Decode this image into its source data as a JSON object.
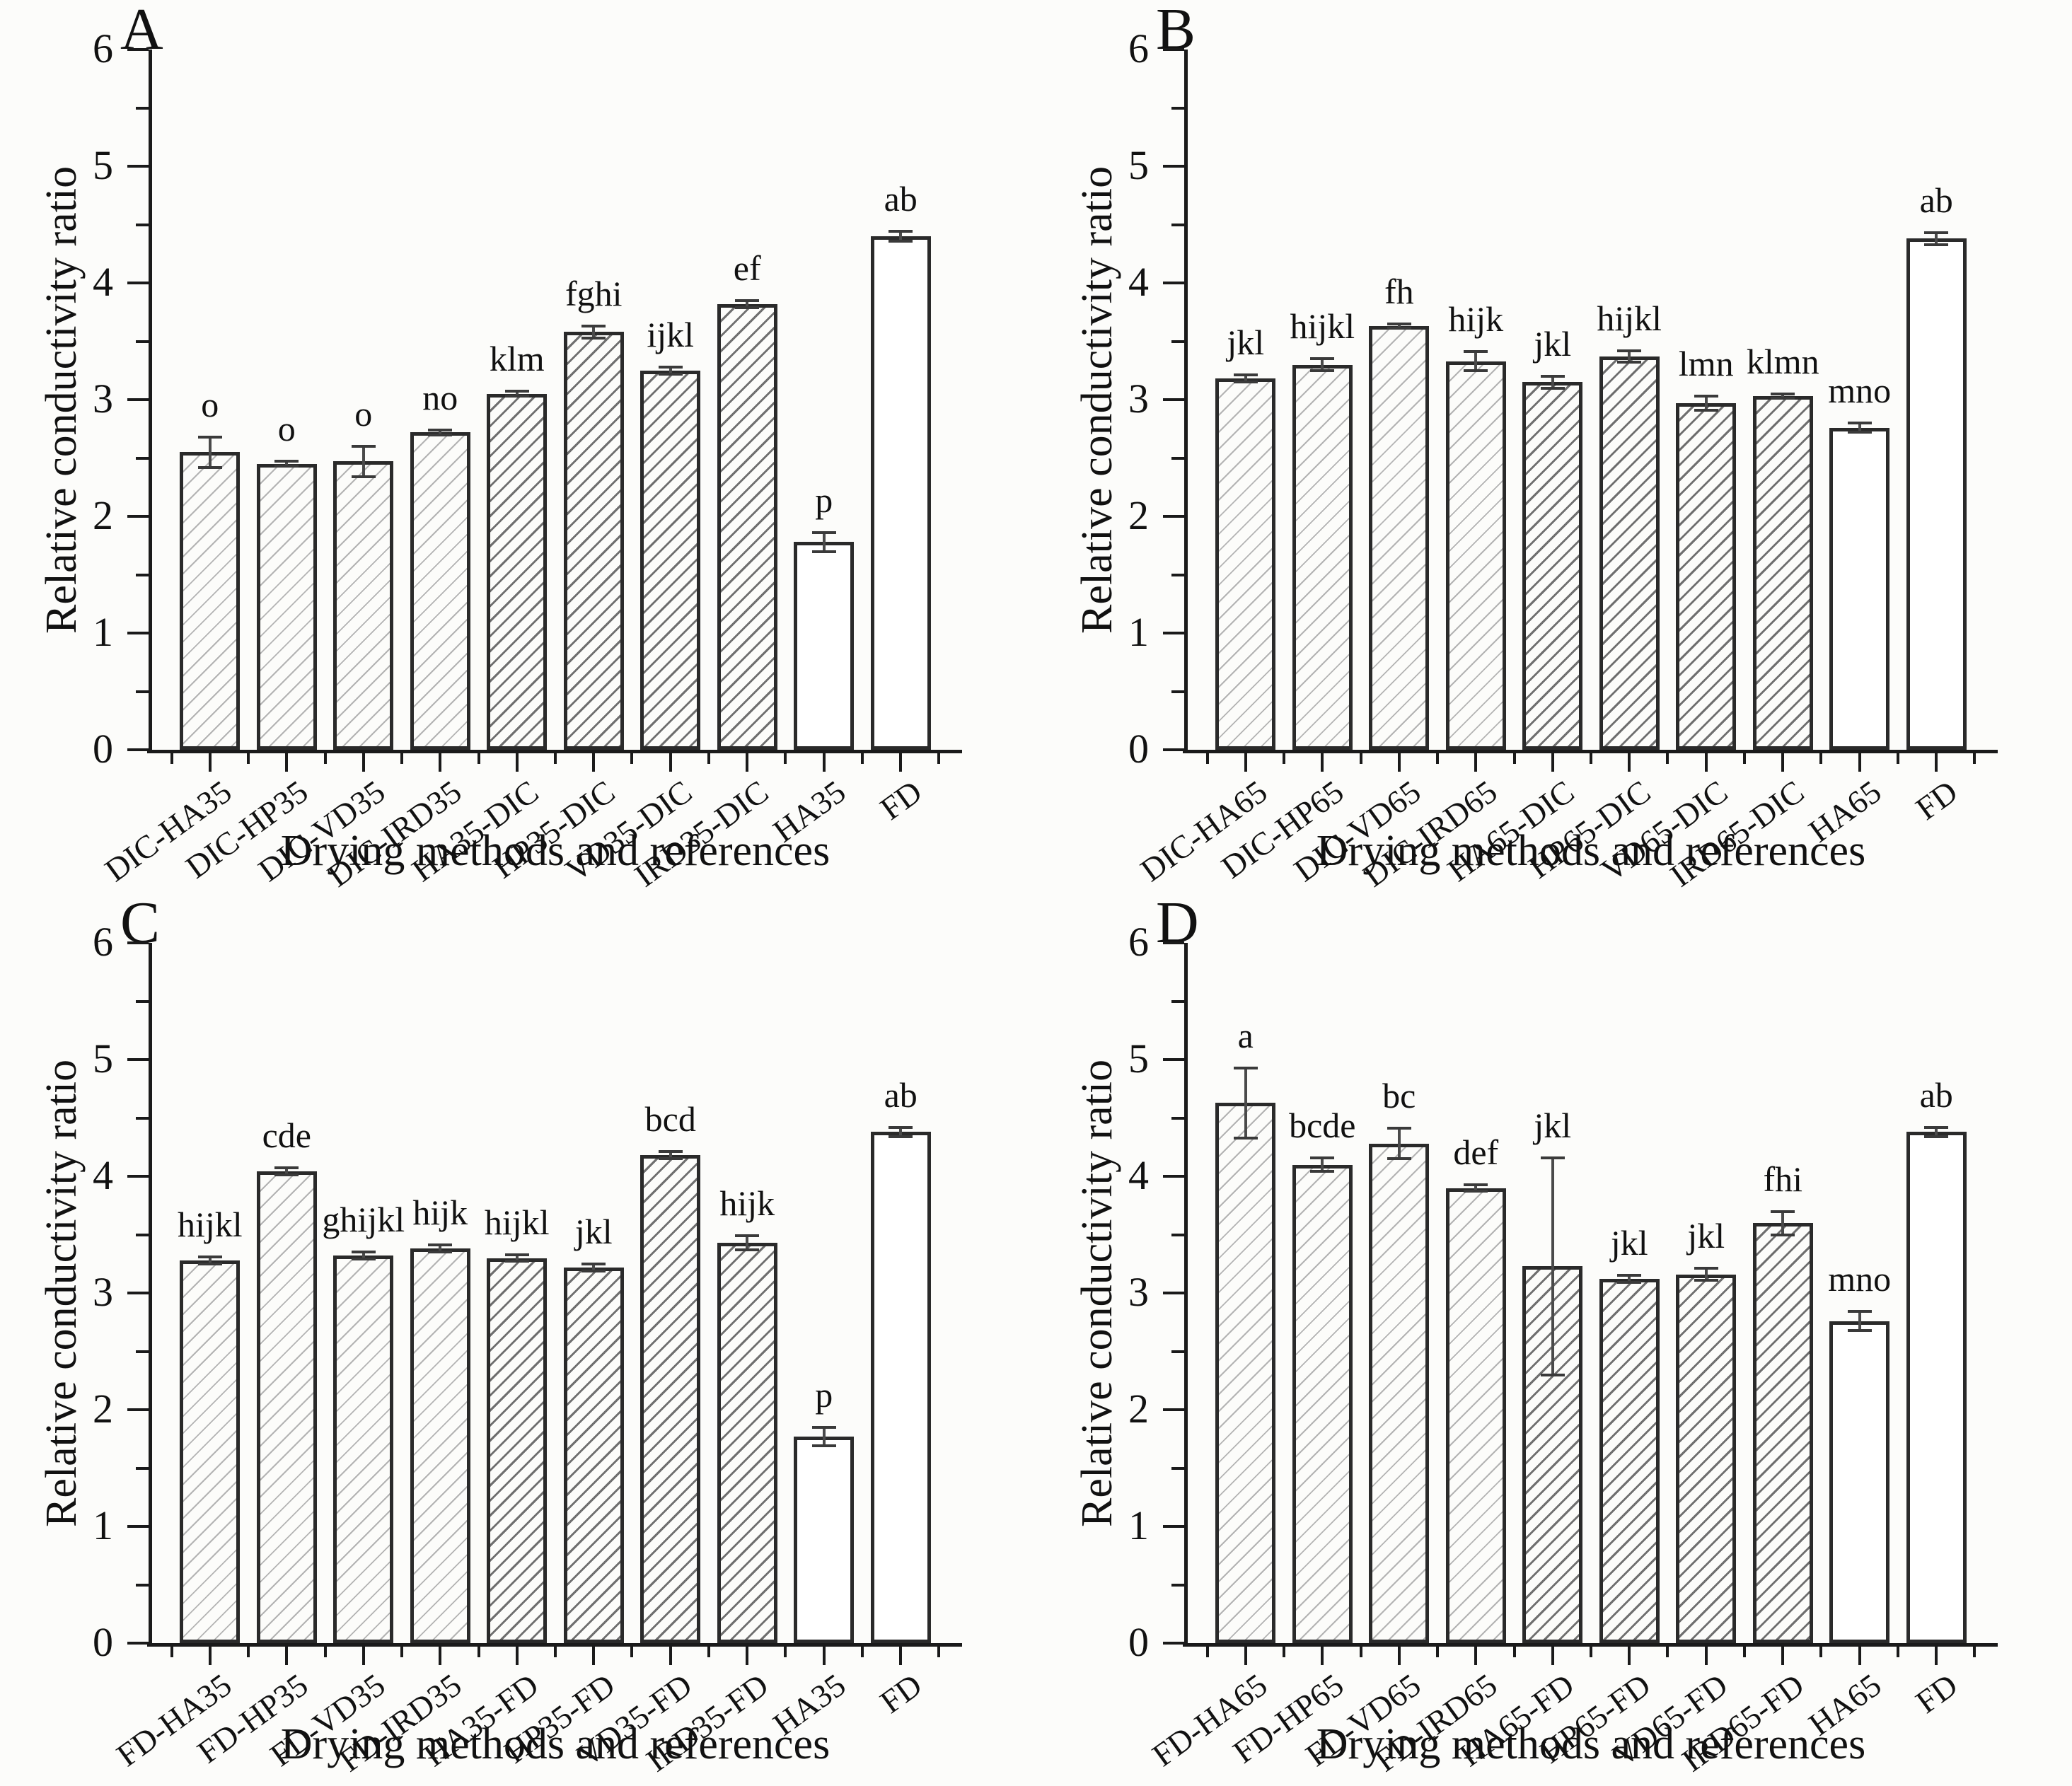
{
  "figure": {
    "description": "Four-panel bar chart figure comparing relative conductivity ratio across drying methods",
    "background": "#fcfcfa",
    "text_color": "#111111",
    "axis_color": "#1a1a1a",
    "bar_outline_color": "#2a2a2a",
    "hatch_light_color": "#b3b3b3",
    "hatch_dark_color": "#6f6f6f"
  },
  "chart_data": [
    {
      "type": "bar",
      "panel_label": "A",
      "xlabel": "Drying methods and references",
      "ylabel": "Relative conductivity ratio",
      "ylim": [
        0,
        6
      ],
      "ytick_step": 1,
      "yminor_step": 0.5,
      "grid": false,
      "categories": [
        "DIC-HA35",
        "DIC-HP35",
        "DIC-VD35",
        "DIC-IRD35",
        "HA35-DIC",
        "HP35-DIC",
        "VD35-DIC",
        "IRD35-DIC",
        "HA35",
        "FD"
      ],
      "values": [
        2.55,
        2.45,
        2.47,
        2.72,
        3.05,
        3.58,
        3.25,
        3.82,
        1.78,
        4.4
      ],
      "errors": [
        0.13,
        0.02,
        0.13,
        0.02,
        0.02,
        0.05,
        0.03,
        0.03,
        0.08,
        0.04
      ],
      "sig_labels": [
        "o",
        "o",
        "o",
        "no",
        "klm",
        "fghi",
        "ijkl",
        "ef",
        "p",
        "ab"
      ],
      "bar_styles": [
        "hatch-light",
        "hatch-light",
        "hatch-light",
        "hatch-light",
        "hatch-dark",
        "hatch-dark",
        "hatch-dark",
        "hatch-dark",
        "plain",
        "plain"
      ]
    },
    {
      "type": "bar",
      "panel_label": "B",
      "xlabel": "Drying methods and references",
      "ylabel": "Relative conductivity ratio",
      "ylim": [
        0,
        6
      ],
      "ytick_step": 1,
      "yminor_step": 0.5,
      "grid": false,
      "categories": [
        "DIC-HA65",
        "DIC-HP65",
        "DIC-VD65",
        "DIC-IRD65",
        "HA65-DIC",
        "HP65-DIC",
        "VD65-DIC",
        "IRD65-DIC",
        "HA65",
        "FD"
      ],
      "values": [
        3.18,
        3.3,
        3.63,
        3.33,
        3.15,
        3.37,
        2.97,
        3.03,
        2.76,
        4.38
      ],
      "errors": [
        0.03,
        0.05,
        0.02,
        0.08,
        0.05,
        0.05,
        0.06,
        0.02,
        0.04,
        0.05
      ],
      "sig_labels": [
        "jkl",
        "hijkl",
        "fh",
        "hijk",
        "jkl",
        "hijkl",
        "lmn",
        "klmn",
        "mno",
        "ab"
      ],
      "bar_styles": [
        "hatch-light",
        "hatch-light",
        "hatch-light",
        "hatch-light",
        "hatch-dark",
        "hatch-dark",
        "hatch-dark",
        "hatch-dark",
        "plain",
        "plain"
      ]
    },
    {
      "type": "bar",
      "panel_label": "C",
      "xlabel": "Drying methods and references",
      "ylabel": "Relative conductivity ratio",
      "ylim": [
        0,
        6
      ],
      "ytick_step": 1,
      "yminor_step": 0.5,
      "grid": false,
      "categories": [
        "FD-HA35",
        "FD-HP35",
        "FD-VD35",
        "FD-IRD35",
        "HA35-FD",
        "HP35-FD",
        "VD35-FD",
        "IRD35-FD",
        "HA35",
        "FD"
      ],
      "values": [
        3.28,
        4.04,
        3.32,
        3.38,
        3.3,
        3.22,
        4.18,
        3.43,
        1.77,
        4.38
      ],
      "errors": [
        0.03,
        0.03,
        0.03,
        0.03,
        0.03,
        0.03,
        0.03,
        0.06,
        0.08,
        0.04
      ],
      "sig_labels": [
        "hijkl",
        "cde",
        "ghijkl",
        "hijk",
        "hijkl",
        "jkl",
        "bcd",
        "hijk",
        "p",
        "ab"
      ],
      "bar_styles": [
        "hatch-light",
        "hatch-light",
        "hatch-light",
        "hatch-light",
        "hatch-dark",
        "hatch-dark",
        "hatch-dark",
        "hatch-dark",
        "plain",
        "plain"
      ]
    },
    {
      "type": "bar",
      "panel_label": "D",
      "xlabel": "Drying methods and references",
      "ylabel": "Relative conductivity ratio",
      "ylim": [
        0,
        6
      ],
      "ytick_step": 1,
      "yminor_step": 0.5,
      "grid": false,
      "categories": [
        "FD-HA65",
        "FD-HP65",
        "FD-VD65",
        "FD-IRD65",
        "HA65-FD",
        "HP65-FD",
        "VD65-FD",
        "IRD65-FD",
        "HA65",
        "FD"
      ],
      "values": [
        4.63,
        4.1,
        4.28,
        3.9,
        3.23,
        3.12,
        3.16,
        3.6,
        2.76,
        4.38
      ],
      "errors": [
        0.3,
        0.06,
        0.13,
        0.03,
        0.93,
        0.03,
        0.05,
        0.1,
        0.08,
        0.04
      ],
      "sig_labels": [
        "a",
        "bcde",
        "bc",
        "def",
        "jkl",
        "jkl",
        "jkl",
        "fhi",
        "mno",
        "ab"
      ],
      "bar_styles": [
        "hatch-light",
        "hatch-light",
        "hatch-light",
        "hatch-light",
        "hatch-dark",
        "hatch-dark",
        "hatch-dark",
        "hatch-dark",
        "plain",
        "plain"
      ]
    }
  ]
}
